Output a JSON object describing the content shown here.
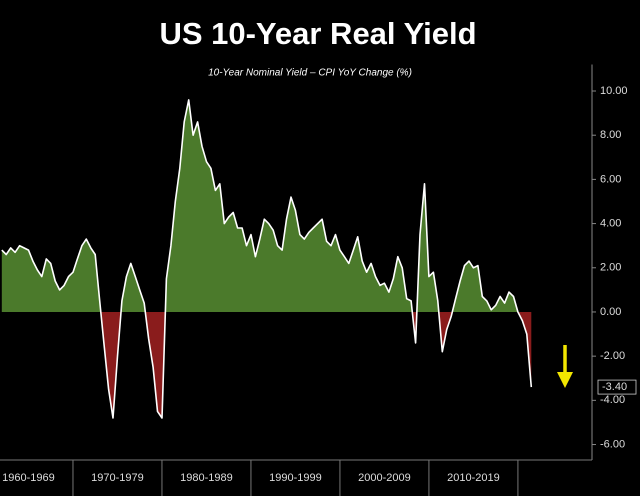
{
  "chart_data": {
    "type": "area",
    "title": "US 10-Year Real Yield",
    "subtitle": "10-Year Nominal Yield – CPI YoY Change (%)",
    "x": [
      1962,
      1962.5,
      1963,
      1963.5,
      1964,
      1964.5,
      1965,
      1965.5,
      1966,
      1966.5,
      1967,
      1967.5,
      1968,
      1968.5,
      1969,
      1969.5,
      1970,
      1970.5,
      1971,
      1971.5,
      1972,
      1972.5,
      1973,
      1973.5,
      1974,
      1974.5,
      1975,
      1975.5,
      1976,
      1976.5,
      1977,
      1977.5,
      1978,
      1978.5,
      1979,
      1979.5,
      1980,
      1980.5,
      1981,
      1981.5,
      1982,
      1982.5,
      1983,
      1983.5,
      1984,
      1984.5,
      1985,
      1985.5,
      1986,
      1986.5,
      1987,
      1987.5,
      1988,
      1988.5,
      1989,
      1989.5,
      1990,
      1990.5,
      1991,
      1991.5,
      1992,
      1992.5,
      1993,
      1993.5,
      1994,
      1994.5,
      1995,
      1995.5,
      1996,
      1996.5,
      1997,
      1997.5,
      1998,
      1998.5,
      1999,
      1999.5,
      2000,
      2000.5,
      2001,
      2001.5,
      2002,
      2002.5,
      2003,
      2003.5,
      2004,
      2004.5,
      2005,
      2005.5,
      2006,
      2006.5,
      2007,
      2007.5,
      2008,
      2008.5,
      2009,
      2009.5,
      2010,
      2010.5,
      2011,
      2011.5,
      2012,
      2012.5,
      2013,
      2013.5,
      2014,
      2014.5,
      2015,
      2015.5,
      2016,
      2016.5,
      2017,
      2017.5,
      2018,
      2018.5,
      2019,
      2019.5,
      2020,
      2020.5,
      2021,
      2021.5
    ],
    "values": [
      2.8,
      2.6,
      2.9,
      2.7,
      3.0,
      2.9,
      2.8,
      2.3,
      1.9,
      1.6,
      2.4,
      2.2,
      1.4,
      1.0,
      1.2,
      1.6,
      1.8,
      2.4,
      3.0,
      3.3,
      2.9,
      2.6,
      0.5,
      -1.5,
      -3.5,
      -4.8,
      -2.0,
      0.5,
      1.6,
      2.2,
      1.6,
      1.0,
      0.4,
      -1.2,
      -2.5,
      -4.5,
      -4.8,
      1.5,
      3.0,
      5.0,
      6.5,
      8.6,
      9.6,
      8.0,
      8.6,
      7.5,
      6.8,
      6.5,
      5.5,
      5.8,
      4.0,
      4.3,
      4.5,
      3.8,
      3.8,
      3.0,
      3.5,
      2.5,
      3.3,
      4.2,
      4.0,
      3.7,
      3.0,
      2.8,
      4.2,
      5.2,
      4.6,
      3.5,
      3.3,
      3.6,
      3.8,
      4.0,
      4.2,
      3.2,
      3.0,
      3.5,
      2.8,
      2.5,
      2.2,
      2.8,
      3.4,
      2.3,
      1.8,
      2.2,
      1.6,
      1.2,
      1.3,
      0.9,
      1.5,
      2.5,
      2.0,
      0.6,
      0.5,
      -1.4,
      3.5,
      5.8,
      1.6,
      1.8,
      0.5,
      -1.8,
      -0.8,
      -0.2,
      0.6,
      1.4,
      2.1,
      2.3,
      2.0,
      2.1,
      0.7,
      0.5,
      0.1,
      0.3,
      0.7,
      0.4,
      0.9,
      0.7,
      0.0,
      -0.4,
      -1.0,
      -3.4
    ],
    "xlim": [
      1961.8,
      2028.1
    ],
    "xticks": [
      {
        "value": 1965,
        "label": "1960-1969"
      },
      {
        "value": 1975,
        "label": "1970-1979"
      },
      {
        "value": 1985,
        "label": "1980-1989"
      },
      {
        "value": 1995,
        "label": "1990-1999"
      },
      {
        "value": 2005,
        "label": "2000-2009"
      },
      {
        "value": 2015,
        "label": "2010-2019"
      }
    ],
    "ylim": [
      -6.7,
      11.2
    ],
    "yticks": [
      {
        "value": 10,
        "label": "10.00"
      },
      {
        "value": 8,
        "label": "8.00"
      },
      {
        "value": 6,
        "label": "6.00"
      },
      {
        "value": 4,
        "label": "4.00"
      },
      {
        "value": 2,
        "label": "2.00"
      },
      {
        "value": 0,
        "label": "0.00"
      },
      {
        "value": -2,
        "label": "-2.00"
      },
      {
        "value": -4,
        "label": "-4.00"
      },
      {
        "value": -6,
        "label": "-6.00"
      }
    ],
    "last_value_label": {
      "value": -3.4,
      "label": "-3.40"
    },
    "line_color": "#ffffff",
    "positive_color": "#4b7a2b",
    "negative_color": "#8a1c1c",
    "arrow_color": "#f2e600"
  }
}
